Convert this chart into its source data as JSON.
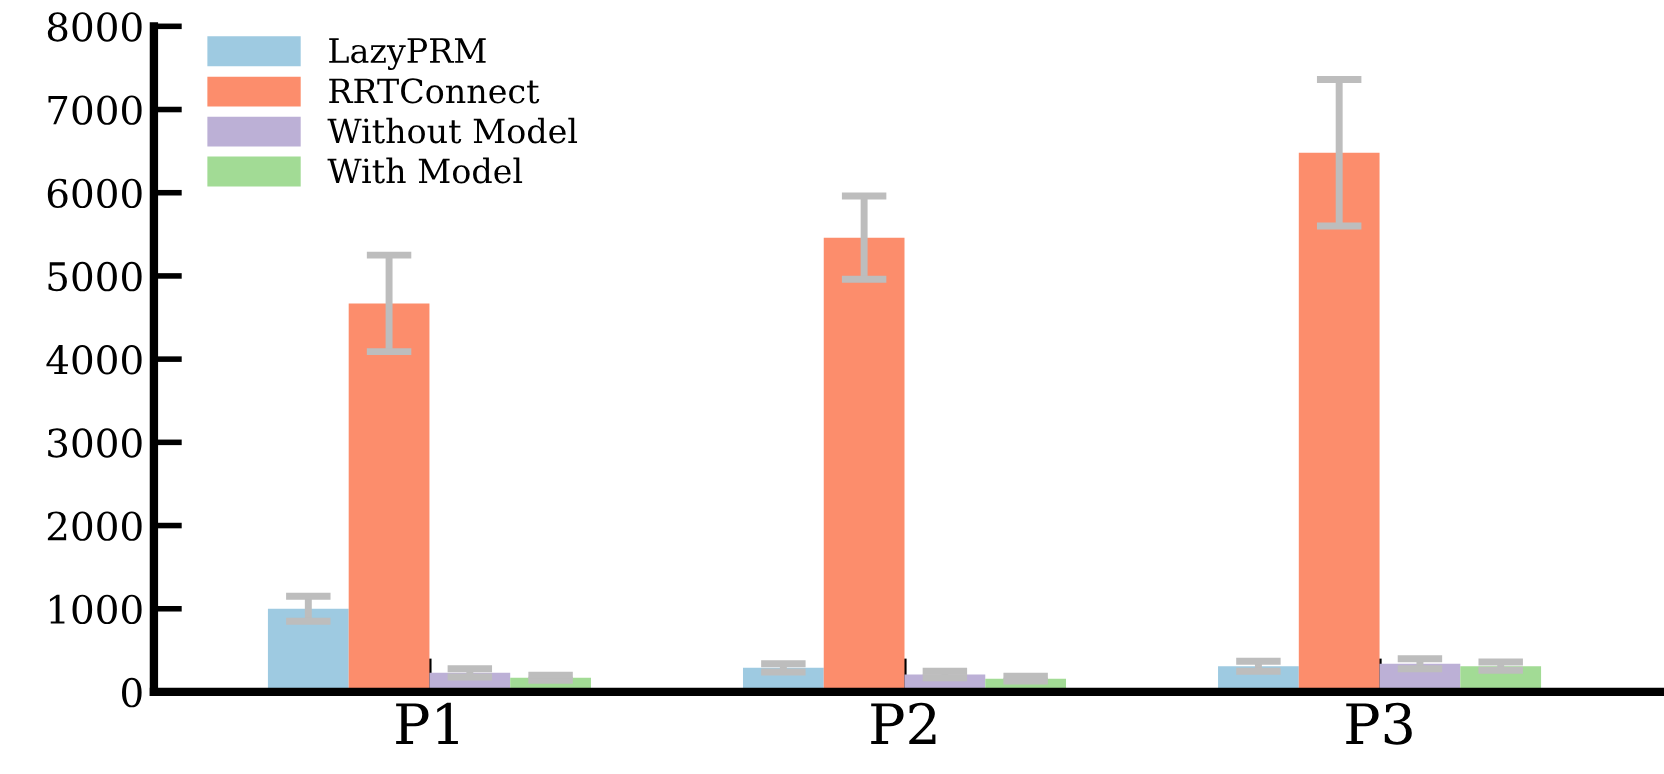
{
  "chart_data": {
    "type": "bar",
    "categories": [
      "P1",
      "P2",
      "P3"
    ],
    "series": [
      {
        "name": "LazyPRM",
        "color": "#9ecae1",
        "values": [
          1000,
          290,
          310
        ],
        "errors": [
          150,
          50,
          60
        ]
      },
      {
        "name": "RRTConnect",
        "color": "#fc8d6c",
        "values": [
          4670,
          5460,
          6480
        ],
        "errors": [
          580,
          500,
          880
        ]
      },
      {
        "name": "Without Model",
        "color": "#bcb0d6",
        "values": [
          230,
          210,
          340
        ],
        "errors": [
          50,
          40,
          60
        ]
      },
      {
        "name": "With Model",
        "color": "#a2db95",
        "values": [
          170,
          160,
          310
        ],
        "errors": [
          30,
          30,
          50
        ]
      }
    ],
    "ylim": [
      0,
      8000
    ],
    "yticks": [
      0,
      1000,
      2000,
      3000,
      4000,
      5000,
      6000,
      7000,
      8000
    ],
    "grid": false,
    "legend": "top left"
  }
}
